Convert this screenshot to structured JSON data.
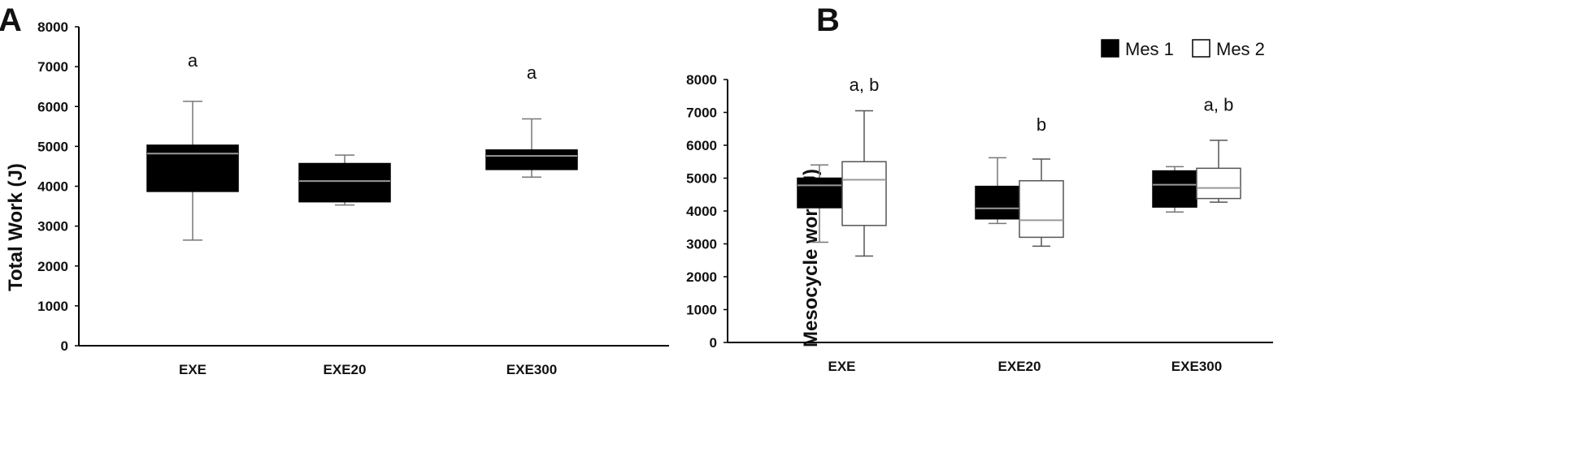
{
  "chart_data": [
    {
      "panel": "A",
      "type": "box",
      "ylabel": "Total Work (J)",
      "ylim": [
        0,
        8000
      ],
      "yticks": [
        0,
        1000,
        2000,
        3000,
        4000,
        5000,
        6000,
        7000,
        8000
      ],
      "categories": [
        "EXE",
        "EXE20",
        "EXE300"
      ],
      "series": [
        {
          "fill": "#000000",
          "median_color": "#999999",
          "boxes": [
            {
              "min": 2650,
              "q1": 3870,
              "median": 4820,
              "q3": 5030,
              "max": 6130
            },
            {
              "min": 3530,
              "q1": 3610,
              "median": 4130,
              "q3": 4570,
              "max": 4780
            },
            {
              "min": 4230,
              "q1": 4420,
              "median": 4760,
              "q3": 4910,
              "max": 5690
            }
          ]
        }
      ],
      "annotations": [
        {
          "category": 0,
          "y": 7000,
          "text": "a"
        },
        {
          "category": 2,
          "y": 6700,
          "text": "a"
        }
      ]
    },
    {
      "panel": "B",
      "type": "box",
      "ylabel": "Mesocycle work (J)",
      "ylim": [
        0,
        8000
      ],
      "yticks": [
        0,
        1000,
        2000,
        3000,
        4000,
        5000,
        6000,
        7000,
        8000
      ],
      "categories": [
        "EXE",
        "EXE20",
        "EXE300"
      ],
      "legend_position": "top-center",
      "series": [
        {
          "name": "Mes 1",
          "fill": "#000000",
          "median_color": "#999999",
          "boxes": [
            {
              "min": 3050,
              "q1": 4100,
              "median": 4780,
              "q3": 5000,
              "max": 5400
            },
            {
              "min": 3620,
              "q1": 3760,
              "median": 4080,
              "q3": 4750,
              "max": 5620
            },
            {
              "min": 3970,
              "q1": 4120,
              "median": 4800,
              "q3": 5220,
              "max": 5350
            }
          ]
        },
        {
          "name": "Mes 2",
          "fill": "#ffffff",
          "median_color": "#999999",
          "boxes": [
            {
              "min": 2630,
              "q1": 3560,
              "median": 4950,
              "q3": 5500,
              "max": 7050
            },
            {
              "min": 2930,
              "q1": 3200,
              "median": 3720,
              "q3": 4920,
              "max": 5580
            },
            {
              "min": 4270,
              "q1": 4380,
              "median": 4700,
              "q3": 5300,
              "max": 6150
            }
          ]
        }
      ],
      "annotations": [
        {
          "category": 0,
          "y": 7650,
          "text": "a, b"
        },
        {
          "category": 1,
          "y": 6450,
          "text": "b"
        },
        {
          "category": 2,
          "y": 7050,
          "text": "a, b"
        }
      ]
    }
  ]
}
